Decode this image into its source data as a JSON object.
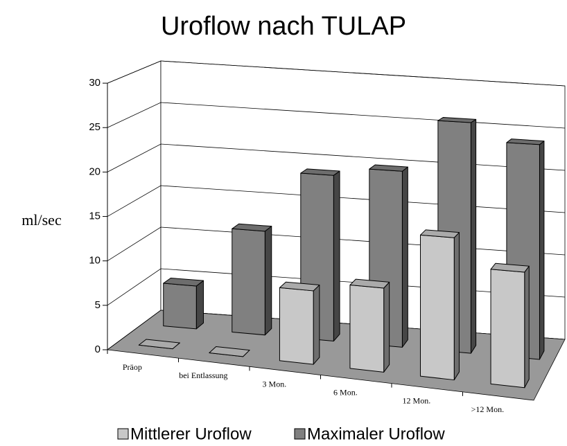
{
  "chart_data": {
    "type": "bar3d",
    "title": "Uroflow nach TULAP",
    "ylabel": "ml/sec",
    "categories": [
      "Präop",
      "bei Entlassung",
      "3 Mon.",
      "6 Mon.",
      "12 Mon.",
      ">12 Mon."
    ],
    "series": [
      {
        "name": "Mittlerer Uroflow",
        "color": "#c8c8c8",
        "values": [
          0,
          0,
          8,
          9,
          15,
          12
        ]
      },
      {
        "name": "Maximaler Uroflow",
        "color": "#808080",
        "values": [
          5,
          12,
          19,
          20,
          26,
          24
        ]
      }
    ],
    "ylim": [
      0,
      30
    ],
    "yticks": [
      0,
      5,
      10,
      15,
      20,
      25,
      30
    ],
    "grid": true,
    "legend": "bottom"
  }
}
